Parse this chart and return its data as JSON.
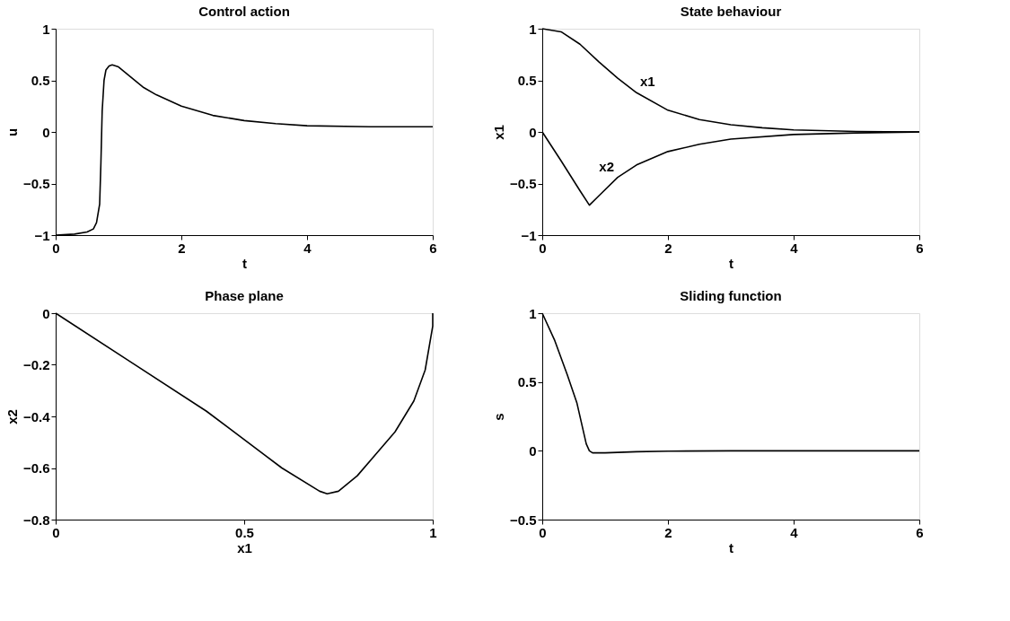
{
  "chart_data": [
    {
      "type": "line",
      "title": "Control action",
      "xlabel": "t",
      "ylabel": "u",
      "xlim": [
        0,
        6
      ],
      "xticks": [
        0,
        2,
        4,
        6
      ],
      "ylim": [
        -1,
        1
      ],
      "yticks": [
        -1,
        -0.5,
        0,
        0.5,
        1
      ],
      "x": [
        0,
        0.3,
        0.5,
        0.6,
        0.65,
        0.7,
        0.72,
        0.74,
        0.77,
        0.8,
        0.85,
        0.9,
        1.0,
        1.2,
        1.4,
        1.6,
        2.0,
        2.5,
        3.0,
        3.5,
        4.0,
        5.0,
        6.0
      ],
      "series": [
        {
          "color": "#000000",
          "values": [
            -1,
            -0.99,
            -0.97,
            -0.94,
            -0.88,
            -0.7,
            -0.3,
            0.2,
            0.5,
            0.6,
            0.64,
            0.65,
            0.63,
            0.53,
            0.43,
            0.36,
            0.25,
            0.16,
            0.11,
            0.08,
            0.06,
            0.05,
            0.05
          ]
        }
      ]
    },
    {
      "type": "line",
      "title": "State behaviour",
      "xlabel": "t",
      "ylabel": "x1",
      "xlim": [
        0,
        6
      ],
      "xticks": [
        0,
        2,
        4,
        6
      ],
      "ylim": [
        -1,
        1
      ],
      "yticks": [
        -1,
        -0.5,
        0,
        0.5,
        1
      ],
      "series": [
        {
          "name": "x1",
          "color": "#000000",
          "x": [
            0,
            0.3,
            0.6,
            0.9,
            1.2,
            1.5,
            2,
            2.5,
            3,
            3.5,
            4,
            5,
            6
          ],
          "values": [
            1,
            0.97,
            0.85,
            0.68,
            0.52,
            0.38,
            0.21,
            0.12,
            0.07,
            0.04,
            0.02,
            0.005,
            0
          ]
        },
        {
          "name": "x2",
          "color": "#000000",
          "x": [
            0,
            0.3,
            0.6,
            0.75,
            0.9,
            1.2,
            1.5,
            2,
            2.5,
            3,
            4,
            5,
            6
          ],
          "values": [
            0,
            -0.28,
            -0.57,
            -0.71,
            -0.62,
            -0.44,
            -0.32,
            -0.19,
            -0.12,
            -0.07,
            -0.025,
            -0.01,
            0
          ]
        }
      ]
    },
    {
      "type": "line",
      "title": "Phase plane",
      "xlabel": "x1",
      "ylabel": "x2",
      "xlim": [
        0,
        1
      ],
      "xticks": [
        0,
        0.5,
        1
      ],
      "ylim": [
        -0.8,
        0
      ],
      "yticks": [
        -0.8,
        -0.6,
        -0.4,
        -0.2,
        0
      ],
      "x": [
        0,
        0.2,
        0.4,
        0.6,
        0.7,
        0.72,
        0.75,
        0.8,
        0.9,
        0.95,
        0.98,
        1.0,
        1.0
      ],
      "series": [
        {
          "color": "#000000",
          "values": [
            0,
            -0.19,
            -0.38,
            -0.6,
            -0.69,
            -0.7,
            -0.69,
            -0.63,
            -0.46,
            -0.34,
            -0.22,
            -0.05,
            0
          ]
        }
      ]
    },
    {
      "type": "line",
      "title": "Sliding function",
      "xlabel": "t",
      "ylabel": "s",
      "xlim": [
        0,
        6
      ],
      "xticks": [
        0,
        2,
        4,
        6
      ],
      "ylim": [
        -0.5,
        1
      ],
      "yticks": [
        -0.5,
        0,
        0.5,
        1
      ],
      "x": [
        0,
        0.2,
        0.4,
        0.55,
        0.7,
        0.75,
        0.8,
        1.0,
        1.5,
        2,
        3,
        6
      ],
      "series": [
        {
          "color": "#000000",
          "values": [
            1,
            0.8,
            0.55,
            0.35,
            0.05,
            0,
            -0.015,
            -0.015,
            -0.007,
            -0.003,
            0,
            0
          ]
        }
      ]
    }
  ]
}
